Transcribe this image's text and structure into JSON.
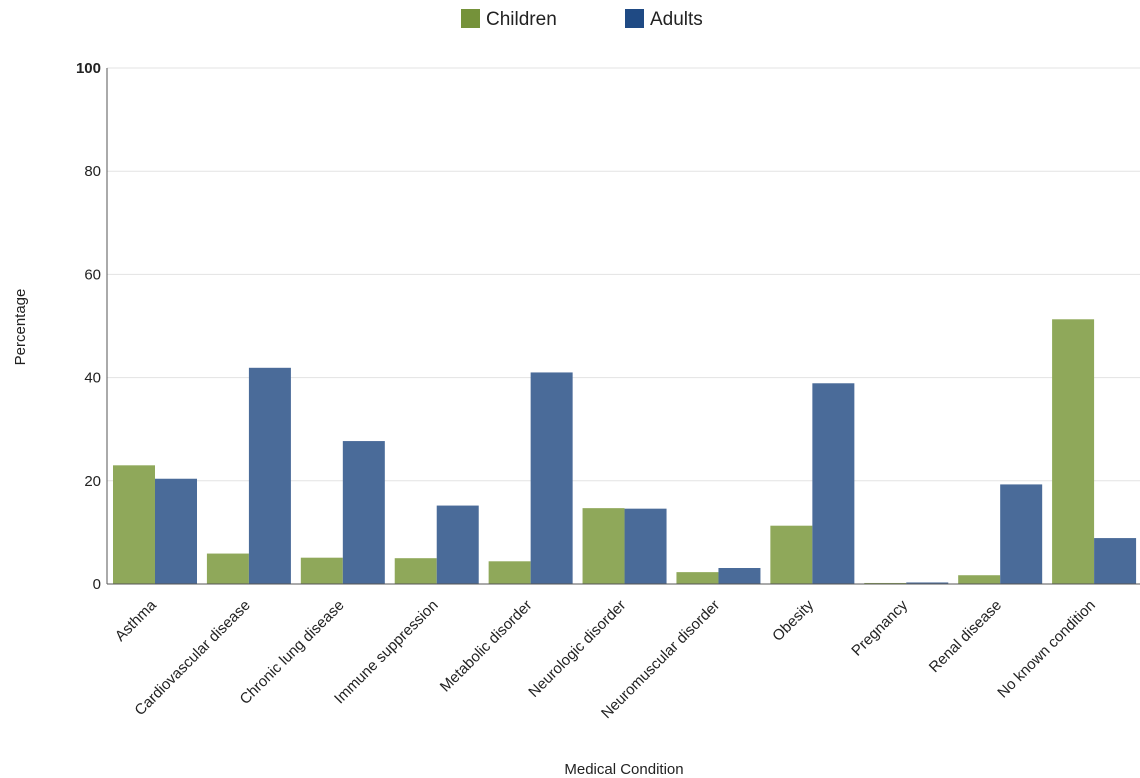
{
  "chart_data": {
    "type": "bar",
    "title": "",
    "xlabel": "Medical Condition",
    "ylabel": "Percentage",
    "ylim": [
      0,
      100
    ],
    "yticks": [
      0,
      20,
      40,
      60,
      80,
      100
    ],
    "grid": true,
    "legend_position": "top-center",
    "categories": [
      "Asthma",
      "Cardiovascular disease",
      "Chronic lung disease",
      "Immune suppression",
      "Metabolic disorder",
      "Neurologic disorder",
      "Neuromuscular disorder",
      "Obesity",
      "Pregnancy",
      "Renal disease",
      "No known condition"
    ],
    "series": [
      {
        "name": "Children",
        "color": "#8fa85a",
        "legend_color": "#75923a",
        "values": [
          23.0,
          5.9,
          5.1,
          5.0,
          4.4,
          14.7,
          2.3,
          11.3,
          0.2,
          1.7,
          51.3
        ]
      },
      {
        "name": "Adults",
        "color": "#4a6b99",
        "legend_color": "#1f4a84",
        "values": [
          20.4,
          41.9,
          27.7,
          15.2,
          41.0,
          14.6,
          3.1,
          38.9,
          0.3,
          19.3,
          8.9
        ]
      }
    ]
  }
}
